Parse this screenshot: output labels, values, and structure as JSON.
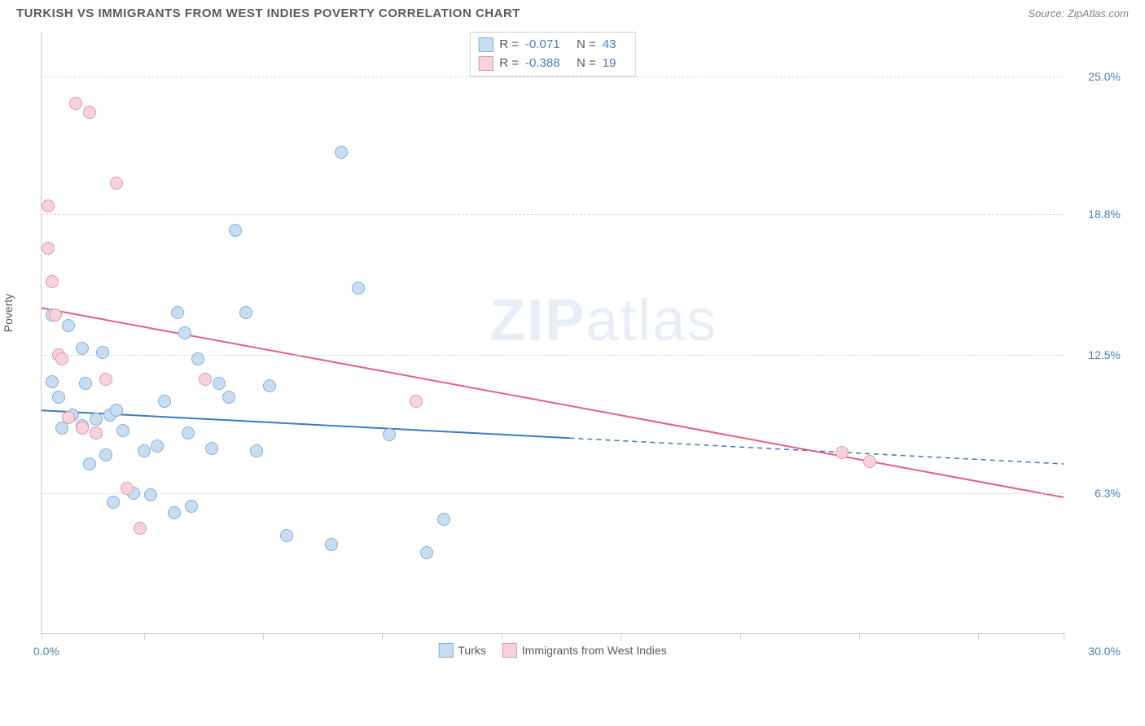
{
  "header": {
    "title": "TURKISH VS IMMIGRANTS FROM WEST INDIES POVERTY CORRELATION CHART",
    "source": "Source: ZipAtlas.com"
  },
  "watermark": {
    "a": "ZIP",
    "b": "atlas"
  },
  "chart": {
    "type": "scatter",
    "y_axis_title": "Poverty",
    "x_range": [
      0,
      30
    ],
    "y_range": [
      0,
      27
    ],
    "x_ticks": [
      0,
      3.0,
      6.5,
      10.0,
      13.5,
      17.0,
      20.5,
      24.0,
      27.5,
      30.0
    ],
    "y_gridlines": [
      {
        "value": 6.3,
        "label": "6.3%"
      },
      {
        "value": 12.5,
        "label": "12.5%"
      },
      {
        "value": 18.8,
        "label": "18.8%"
      },
      {
        "value": 25.0,
        "label": "25.0%"
      }
    ],
    "x_origin_label": "0.0%",
    "x_max_label": "30.0%",
    "background_color": "#ffffff",
    "grid_color": "#d8d8d8",
    "axis_color": "#cccccc",
    "tick_label_color": "#4a7ebb",
    "series": [
      {
        "name": "Turks",
        "fill": "#c9ddf0",
        "stroke": "#7fb0de",
        "marker_radius": 8,
        "trend": {
          "x1": 0,
          "y1": 10.0,
          "x2": 30,
          "y2": 7.6,
          "solid_until_x": 15.5,
          "color": "#3d79c1",
          "width": 2
        },
        "stats": {
          "R": "-0.071",
          "N": "43"
        },
        "points": [
          [
            0.3,
            14.3
          ],
          [
            0.3,
            11.3
          ],
          [
            0.5,
            10.6
          ],
          [
            0.6,
            9.2
          ],
          [
            0.8,
            13.8
          ],
          [
            0.9,
            9.8
          ],
          [
            1.2,
            12.8
          ],
          [
            1.2,
            9.3
          ],
          [
            1.3,
            11.2
          ],
          [
            1.4,
            7.6
          ],
          [
            1.6,
            9.6
          ],
          [
            1.6,
            9.0
          ],
          [
            1.8,
            12.6
          ],
          [
            1.9,
            8.0
          ],
          [
            2.0,
            9.8
          ],
          [
            2.1,
            5.9
          ],
          [
            2.2,
            10.0
          ],
          [
            2.4,
            9.1
          ],
          [
            2.7,
            6.3
          ],
          [
            3.0,
            8.2
          ],
          [
            3.2,
            6.2
          ],
          [
            3.4,
            8.4
          ],
          [
            3.6,
            10.4
          ],
          [
            3.9,
            5.4
          ],
          [
            4.0,
            14.4
          ],
          [
            4.2,
            13.5
          ],
          [
            4.3,
            9.0
          ],
          [
            4.4,
            5.7
          ],
          [
            4.6,
            12.3
          ],
          [
            5.0,
            8.3
          ],
          [
            5.2,
            11.2
          ],
          [
            5.5,
            10.6
          ],
          [
            5.7,
            18.1
          ],
          [
            6.0,
            14.4
          ],
          [
            6.3,
            8.2
          ],
          [
            6.7,
            11.1
          ],
          [
            7.2,
            4.4
          ],
          [
            8.5,
            4.0
          ],
          [
            8.8,
            21.6
          ],
          [
            9.3,
            15.5
          ],
          [
            10.2,
            8.9
          ],
          [
            11.3,
            3.6
          ],
          [
            11.8,
            5.1
          ]
        ]
      },
      {
        "name": "Immigrants from West Indies",
        "fill": "#f6d3dc",
        "stroke": "#e993ab",
        "marker_radius": 8,
        "trend": {
          "x1": 0,
          "y1": 14.6,
          "x2": 30,
          "y2": 6.1,
          "solid_until_x": 30,
          "color": "#e55f85",
          "width": 2
        },
        "stats": {
          "R": "-0.388",
          "N": "19"
        },
        "points": [
          [
            0.2,
            19.2
          ],
          [
            0.2,
            17.3
          ],
          [
            0.3,
            15.8
          ],
          [
            0.4,
            14.3
          ],
          [
            0.5,
            12.5
          ],
          [
            0.6,
            12.3
          ],
          [
            0.8,
            9.7
          ],
          [
            1.0,
            23.8
          ],
          [
            1.2,
            9.2
          ],
          [
            1.4,
            23.4
          ],
          [
            1.6,
            9.0
          ],
          [
            1.9,
            11.4
          ],
          [
            2.2,
            20.2
          ],
          [
            2.5,
            6.5
          ],
          [
            2.9,
            4.7
          ],
          [
            4.8,
            11.4
          ],
          [
            11.0,
            10.4
          ],
          [
            23.5,
            8.1
          ],
          [
            24.3,
            7.7
          ]
        ]
      }
    ],
    "stats_legend_labels": {
      "R": "R =",
      "N": "N ="
    }
  }
}
